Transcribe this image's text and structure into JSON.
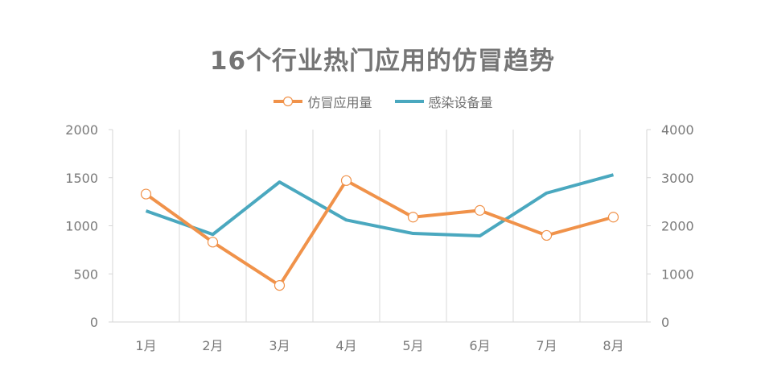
{
  "title": "16个行业热门应用的仿冒趋势",
  "legend": [
    {
      "label": "仿冒应用量",
      "color": "#F0924A",
      "marker": "circle-open"
    },
    {
      "label": "感染设备量",
      "color": "#4AA8BF",
      "marker": "none"
    }
  ],
  "chart_data": {
    "type": "line",
    "title": "16个行业热门应用的仿冒趋势",
    "categories": [
      "1月",
      "2月",
      "3月",
      "4月",
      "5月",
      "6月",
      "7月",
      "8月"
    ],
    "series": [
      {
        "name": "仿冒应用量",
        "axis": "left",
        "color": "#F0924A",
        "values": [
          1330,
          830,
          380,
          1470,
          1090,
          1160,
          900,
          1090
        ]
      },
      {
        "name": "感染设备量",
        "axis": "right",
        "color": "#4AA8BF",
        "values": [
          2310,
          1820,
          2910,
          2120,
          1840,
          1790,
          2680,
          3060
        ]
      }
    ],
    "y_left": {
      "ylim": [
        0,
        2000
      ],
      "ticks": [
        "0",
        "500",
        "1000",
        "1500",
        "2000"
      ]
    },
    "y_right": {
      "ylim": [
        0,
        4000
      ],
      "ticks": [
        "0",
        "1000",
        "2000",
        "3000",
        "4000"
      ]
    },
    "xlabel": "",
    "ylabel": "",
    "grid": "vertical category separators",
    "legend_position": "top"
  }
}
